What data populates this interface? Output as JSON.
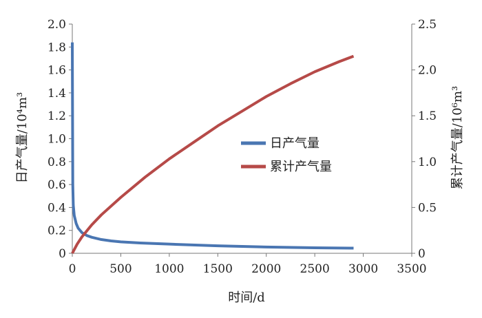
{
  "chart_data": {
    "type": "line",
    "x_axis": {
      "label": "时间/d",
      "range": [
        0,
        3500
      ],
      "ticks": [
        "0",
        "500",
        "1000",
        "1500",
        "2000",
        "2500",
        "3000",
        "3500"
      ]
    },
    "y_axis_left": {
      "label": "日产气量/10⁴m³",
      "range": [
        0,
        2.0
      ],
      "ticks": [
        "0",
        "0.2",
        "0.4",
        "0.6",
        "0.8",
        "1.0",
        "1.2",
        "1.4",
        "1.6",
        "1.8",
        "2.0"
      ]
    },
    "y_axis_right": {
      "label": "累计产气量/10⁶m³",
      "range": [
        0,
        2.5
      ],
      "ticks": [
        "0",
        "0.5",
        "1.0",
        "1.5",
        "2.0",
        "2.5"
      ]
    },
    "grid": false,
    "legend": {
      "placement": "center"
    },
    "series": [
      {
        "name": "日产气量",
        "axis": "left",
        "color": "#4a76b2",
        "x": [
          0,
          5,
          10,
          20,
          40,
          60,
          100,
          150,
          200,
          300,
          400,
          500,
          700,
          1000,
          1500,
          2000,
          2500,
          2900
        ],
        "y": [
          1.84,
          0.6,
          0.42,
          0.33,
          0.26,
          0.22,
          0.18,
          0.155,
          0.14,
          0.12,
          0.108,
          0.1,
          0.09,
          0.08,
          0.065,
          0.055,
          0.048,
          0.045
        ]
      },
      {
        "name": "累计产气量",
        "axis": "right",
        "color": "#b64a48",
        "x": [
          0,
          50,
          100,
          200,
          300,
          500,
          750,
          1000,
          1250,
          1500,
          1750,
          2000,
          2250,
          2500,
          2750,
          2900
        ],
        "y": [
          0,
          0.1,
          0.18,
          0.31,
          0.42,
          0.61,
          0.83,
          1.03,
          1.21,
          1.39,
          1.55,
          1.71,
          1.85,
          1.98,
          2.09,
          2.15
        ]
      }
    ]
  }
}
